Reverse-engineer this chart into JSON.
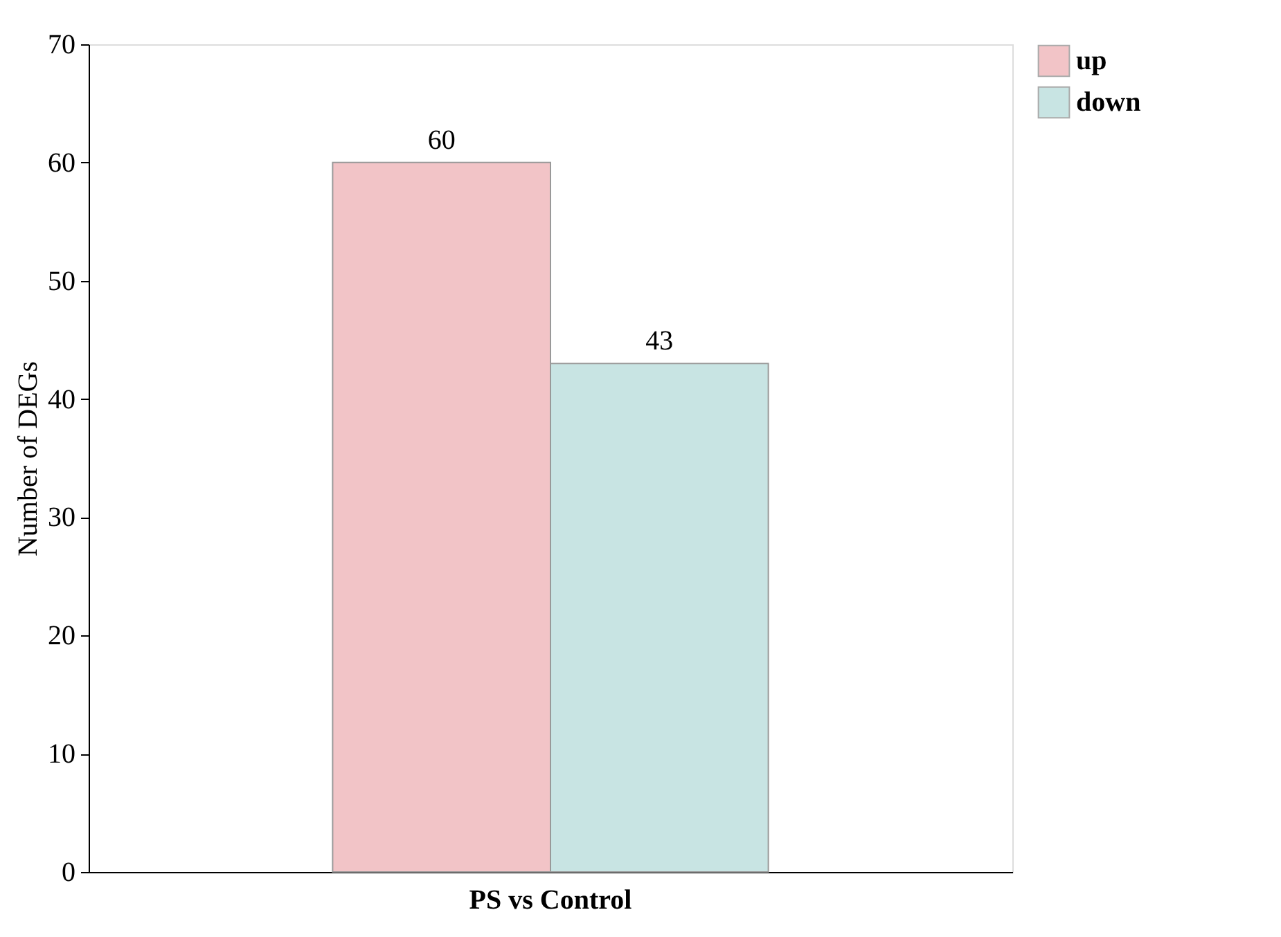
{
  "chart_data": {
    "type": "bar",
    "ylabel": "Number of DEGs",
    "categories": [
      "PS vs Control"
    ],
    "series": [
      {
        "name": "up",
        "color": "#f2c4c7",
        "values": [
          60
        ]
      },
      {
        "name": "down",
        "color": "#c8e4e3",
        "values": [
          43
        ]
      }
    ],
    "ylim": [
      0,
      70
    ],
    "yticks": [
      0,
      10,
      20,
      30,
      40,
      50,
      60,
      70
    ],
    "data_labels": true,
    "grid": false,
    "legend": "top right"
  }
}
